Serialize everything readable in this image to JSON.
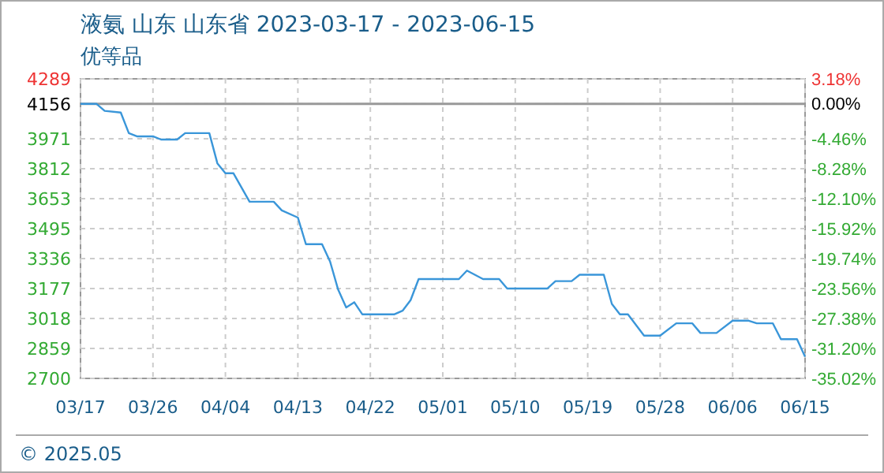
{
  "chart_data": {
    "type": "line",
    "title": "液氨 山东 山东省 2023-03-17 - 2023-06-15",
    "subtitle": "优等品",
    "x": [
      "2023-03-17",
      "2023-03-19",
      "2023-03-20",
      "2023-03-22",
      "2023-03-23",
      "2023-03-24",
      "2023-03-26",
      "2023-03-27",
      "2023-03-29",
      "2023-03-30",
      "2023-04-02",
      "2023-04-03",
      "2023-04-04",
      "2023-04-05",
      "2023-04-07",
      "2023-04-10",
      "2023-04-11",
      "2023-04-13",
      "2023-04-14",
      "2023-04-16",
      "2023-04-17",
      "2023-04-18",
      "2023-04-19",
      "2023-04-20",
      "2023-04-21",
      "2023-04-25",
      "2023-04-26",
      "2023-04-27",
      "2023-04-28",
      "2023-05-03",
      "2023-05-04",
      "2023-05-06",
      "2023-05-08",
      "2023-05-09",
      "2023-05-14",
      "2023-05-15",
      "2023-05-17",
      "2023-05-18",
      "2023-05-21",
      "2023-05-22",
      "2023-05-23",
      "2023-05-24",
      "2023-05-26",
      "2023-05-28",
      "2023-05-30",
      "2023-06-01",
      "2023-06-02",
      "2023-06-04",
      "2023-06-06",
      "2023-06-08",
      "2023-06-09",
      "2023-06-11",
      "2023-06-12",
      "2023-06-14",
      "2023-06-15"
    ],
    "series": [
      {
        "color": "#3a96d9",
        "values": [
          4156,
          4156,
          4119,
          4110,
          4001,
          3984,
          3984,
          3967,
          3967,
          4001,
          4001,
          3841,
          3788,
          3788,
          3637,
          3637,
          3591,
          3553,
          3412,
          3412,
          3320,
          3171,
          3076,
          3104,
          3040,
          3040,
          3059,
          3115,
          3227,
          3227,
          3272,
          3227,
          3227,
          3177,
          3177,
          3216,
          3216,
          3250,
          3250,
          3095,
          3040,
          3040,
          2927,
          2927,
          2992,
          2992,
          2941,
          2941,
          3006,
          3006,
          2992,
          2992,
          2908,
          2908,
          2815
        ]
      }
    ],
    "xlim": [
      "2023-03-17",
      "2023-06-15"
    ],
    "xticks": [
      {
        "value": "2023-03-17",
        "label": "03/17"
      },
      {
        "value": "2023-03-26",
        "label": "03/26"
      },
      {
        "value": "2023-04-04",
        "label": "04/04"
      },
      {
        "value": "2023-04-13",
        "label": "04/13"
      },
      {
        "value": "2023-04-22",
        "label": "04/22"
      },
      {
        "value": "2023-05-01",
        "label": "05/01"
      },
      {
        "value": "2023-05-10",
        "label": "05/10"
      },
      {
        "value": "2023-05-19",
        "label": "05/19"
      },
      {
        "value": "2023-05-28",
        "label": "05/28"
      },
      {
        "value": "2023-06-06",
        "label": "06/06"
      },
      {
        "value": "2023-06-15",
        "label": "06/15"
      }
    ],
    "ylim": [
      2700,
      4289
    ],
    "yticks": [
      2700,
      2859,
      3018,
      3177,
      3336,
      3495,
      3653,
      3812,
      3971,
      4156,
      4289
    ],
    "y2lim": [
      -35.02,
      3.18
    ],
    "y2ticks": [
      {
        "value": -35.02,
        "label": "-35.02%"
      },
      {
        "value": -31.2,
        "label": "-31.20%"
      },
      {
        "value": -27.38,
        "label": "-27.38%"
      },
      {
        "value": -23.56,
        "label": "-23.56%"
      },
      {
        "value": -19.74,
        "label": "-19.74%"
      },
      {
        "value": -15.92,
        "label": "-15.92%"
      },
      {
        "value": -12.1,
        "label": "-12.10%"
      },
      {
        "value": -8.28,
        "label": "-8.28%"
      },
      {
        "value": -4.46,
        "label": "-4.46%"
      },
      {
        "value": 0,
        "label": "0.00%"
      },
      {
        "value": 3.18,
        "label": "3.18%"
      }
    ],
    "ref_lines": [
      {
        "axis": "y",
        "value": 4156,
        "color": "#999999"
      }
    ],
    "grid": true,
    "annotations": [
      "© 2025.05"
    ]
  }
}
